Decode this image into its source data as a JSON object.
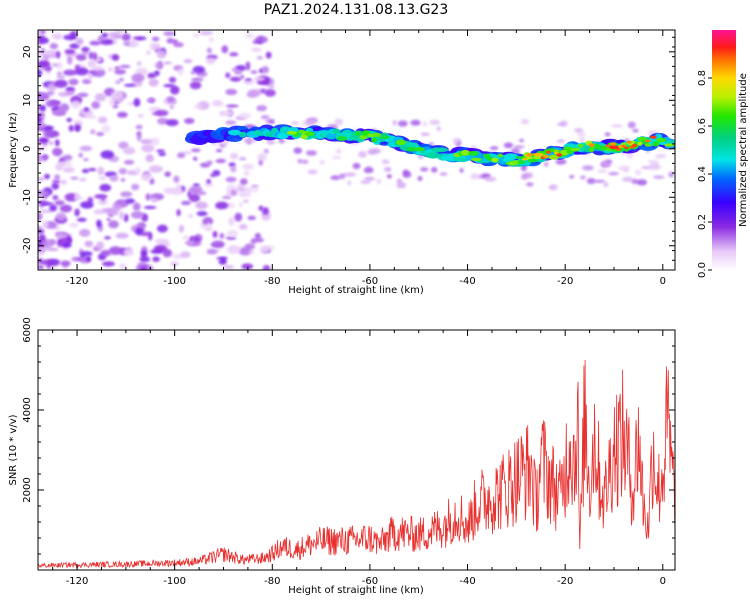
{
  "title": "PAZ1.2024.131.08.13.G23",
  "colors": {
    "snr_line": "#e8312f",
    "axis": "#000000"
  },
  "chart_data": [
    {
      "type": "heatmap",
      "xlabel": "Height of straight line (km)",
      "ylabel": "Frequency (Hz)",
      "xlim": [
        -128,
        2.5
      ],
      "ylim": [
        -25,
        24.5
      ],
      "xticks": [
        -120,
        -100,
        -80,
        -60,
        -40,
        -20,
        0
      ],
      "xtick_labels": [
        "-120",
        "-100",
        "-80",
        "-60",
        "-40",
        "-20",
        "0"
      ],
      "yticks": [
        -20,
        -10,
        0,
        10,
        20
      ],
      "ytick_labels": [
        "-20",
        "-10",
        "0",
        "10",
        "20"
      ],
      "colorbar": {
        "label": "Normalized spectral amplitude",
        "ticks": [
          0.0,
          0.2,
          0.4,
          0.6,
          0.8
        ],
        "tick_labels": [
          "0.0",
          "0.2",
          "0.4",
          "0.6",
          "0.8"
        ],
        "range": [
          0,
          1
        ],
        "colormap": "gist_ncar-like (white-purple-blue-cyan-green-yellow-red-magenta)"
      },
      "ridge": {
        "x": [
          -95,
          -85,
          -80,
          -75,
          -70,
          -65,
          -60,
          -55,
          -50,
          -45,
          -40,
          -35,
          -30,
          -25,
          -20,
          -15,
          -10,
          -5,
          0,
          2
        ],
        "frequency": [
          2.5,
          3,
          3.5,
          3.2,
          3.5,
          2.8,
          2.5,
          1.5,
          0,
          -1,
          -1.5,
          -2,
          -2.5,
          -1.5,
          -0.5,
          0.5,
          0.2,
          1,
          2,
          0.5
        ],
        "amplitude": [
          0.25,
          0.3,
          0.35,
          0.45,
          0.4,
          0.45,
          0.5,
          0.45,
          0.45,
          0.4,
          0.5,
          0.55,
          0.55,
          0.7,
          0.6,
          0.55,
          0.85,
          0.7,
          0.55,
          0.5
        ]
      }
    },
    {
      "type": "line",
      "xlabel": "Height of straight line (km)",
      "ylabel": "SNR (10 * v/v)",
      "xlim": [
        -128,
        2.5
      ],
      "ylim": [
        0,
        6000
      ],
      "xticks": [
        -120,
        -100,
        -80,
        -60,
        -40,
        -20,
        0
      ],
      "xtick_labels": [
        "-120",
        "-100",
        "-80",
        "-60",
        "-40",
        "-20",
        "0"
      ],
      "yticks": [
        2000,
        4000,
        6000
      ],
      "ytick_labels": [
        "2000",
        "4000",
        "6000"
      ],
      "series": [
        {
          "x": [
            -128,
            -120,
            -110,
            -100,
            -95,
            -92,
            -90,
            -86,
            -82,
            -80,
            -78,
            -75,
            -72,
            -70,
            -65,
            -60,
            -58,
            -55,
            -50,
            -45,
            -42,
            -40,
            -38,
            -35,
            -33,
            -31,
            -29,
            -27,
            -26,
            -25,
            -23,
            -21,
            -19,
            -18,
            -17.5,
            -17,
            -16,
            -15,
            -14,
            -13,
            -12,
            -10,
            -8,
            -6,
            -5,
            -4,
            -3,
            -2,
            -1,
            0,
            1,
            2
          ],
          "y": [
            150,
            180,
            200,
            250,
            300,
            450,
            550,
            350,
            400,
            550,
            800,
            700,
            900,
            1000,
            1000,
            1100,
            900,
            1300,
            1200,
            1500,
            2000,
            1500,
            2300,
            2500,
            2700,
            3000,
            3300,
            3500,
            2200,
            3800,
            3100,
            2500,
            4500,
            3600,
            6000,
            700,
            5500,
            2800,
            4700,
            3200,
            2400,
            4300,
            4600,
            2700,
            4700,
            2300,
            1400,
            4400,
            2700,
            3300,
            5200,
            3000
          ]
        }
      ]
    }
  ]
}
